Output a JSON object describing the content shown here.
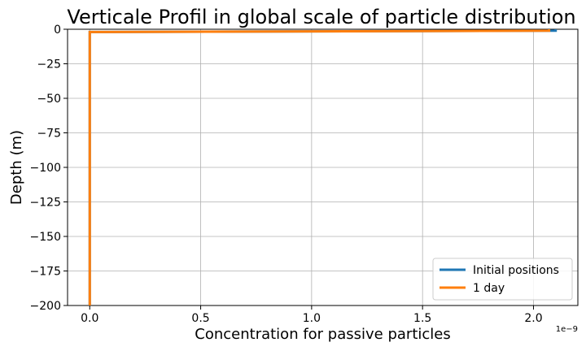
{
  "chart_data": {
    "type": "line",
    "title": "Verticale Profil in global scale of particle distribution",
    "xlabel": "Concentration for passive particles",
    "ylabel": "Depth (m)",
    "x_offset_label": "1e−9",
    "xlim": [
      -0.1,
      2.2
    ],
    "ylim": [
      -200,
      0
    ],
    "x_ticks": [
      0.0,
      0.5,
      1.0,
      1.5,
      2.0
    ],
    "x_tick_labels": [
      "0.0",
      "0.5",
      "1.0",
      "1.5",
      "2.0"
    ],
    "y_ticks": [
      0,
      -25,
      -50,
      -75,
      -100,
      -125,
      -150,
      -175,
      -200
    ],
    "y_tick_labels": [
      "0",
      "−25",
      "−50",
      "−75",
      "−100",
      "−125",
      "−150",
      "−175",
      "−200"
    ],
    "grid": true,
    "legend_position": "bottom-right",
    "series": [
      {
        "name": "Initial positions",
        "color": "#1f77b4",
        "x": [
          2.1,
          2.1,
          0.0,
          0.0
        ],
        "y": [
          0,
          -1,
          -2,
          -200
        ]
      },
      {
        "name": "1 day",
        "color": "#ff7f0e",
        "x": [
          2.07,
          2.07,
          0.0,
          0.0
        ],
        "y": [
          0,
          -1,
          -2,
          -200
        ]
      }
    ]
  }
}
